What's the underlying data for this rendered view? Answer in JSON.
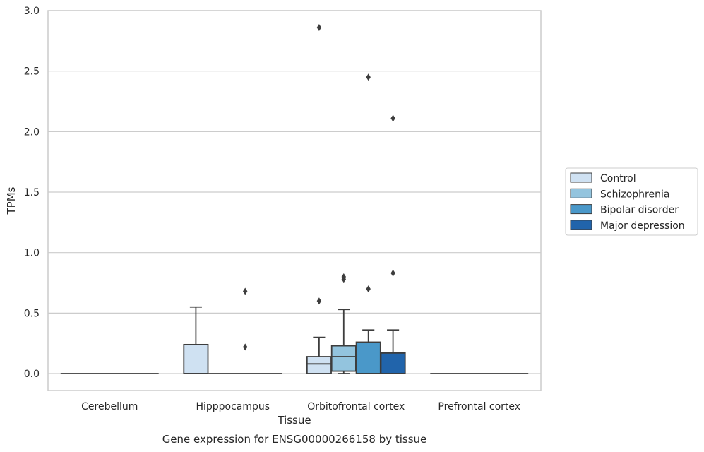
{
  "chart_data": {
    "type": "box",
    "xlabel": "Tissue",
    "ylabel": "TPMs",
    "caption": "Gene expression for ENSG00000266158 by tissue",
    "ylim": [
      -0.14,
      3.0
    ],
    "yticks": [
      "0.0",
      "0.5",
      "1.0",
      "1.5",
      "2.0",
      "2.5",
      "3.0"
    ],
    "grid": true,
    "legend_position": "right",
    "categories": [
      "Cerebellum",
      "Hipppocampus",
      "Orbitofrontal cortex",
      "Prefrontal cortex"
    ],
    "series": [
      {
        "name": "Control",
        "color": "#cfe1f2"
      },
      {
        "name": "Schizophrenia",
        "color": "#93c4de"
      },
      {
        "name": "Bipolar disorder",
        "color": "#4a98c9"
      },
      {
        "name": "Major depression",
        "color": "#2164ab"
      }
    ],
    "boxes": [
      {
        "category": "Cerebellum",
        "series": "all",
        "q1": 0,
        "median": 0,
        "q3": 0,
        "whisker_low": 0,
        "whisker_high": 0,
        "outliers": []
      },
      {
        "category": "Hipppocampus",
        "series": "Control",
        "q1": 0,
        "median": 0,
        "q3": 0.24,
        "whisker_low": 0,
        "whisker_high": 0.55,
        "outliers": []
      },
      {
        "category": "Hipppocampus",
        "series": "Schizophrenia+Bipolar disorder+Major depression",
        "q1": 0,
        "median": 0,
        "q3": 0,
        "whisker_low": 0,
        "whisker_high": 0,
        "outliers": [
          0.68,
          0.22
        ]
      },
      {
        "category": "Orbitofrontal cortex",
        "series": "Control",
        "q1": 0,
        "median": 0.08,
        "q3": 0.14,
        "whisker_low": 0,
        "whisker_high": 0.3,
        "outliers": [
          2.86,
          0.6
        ]
      },
      {
        "category": "Orbitofrontal cortex",
        "series": "Schizophrenia",
        "q1": 0.02,
        "median": 0.14,
        "q3": 0.23,
        "whisker_low": 0,
        "whisker_high": 0.53,
        "outliers": [
          0.8,
          0.78
        ]
      },
      {
        "category": "Orbitofrontal cortex",
        "series": "Bipolar disorder",
        "q1": 0,
        "median": 0,
        "q3": 0.26,
        "whisker_low": 0,
        "whisker_high": 0.36,
        "outliers": [
          2.45,
          0.7
        ]
      },
      {
        "category": "Orbitofrontal cortex",
        "series": "Major depression",
        "q1": 0,
        "median": 0,
        "q3": 0.17,
        "whisker_low": 0,
        "whisker_high": 0.36,
        "outliers": [
          2.11,
          0.83
        ]
      },
      {
        "category": "Prefrontal cortex",
        "series": "all",
        "q1": 0,
        "median": 0,
        "q3": 0,
        "whisker_low": 0,
        "whisker_high": 0,
        "outliers": []
      }
    ]
  }
}
